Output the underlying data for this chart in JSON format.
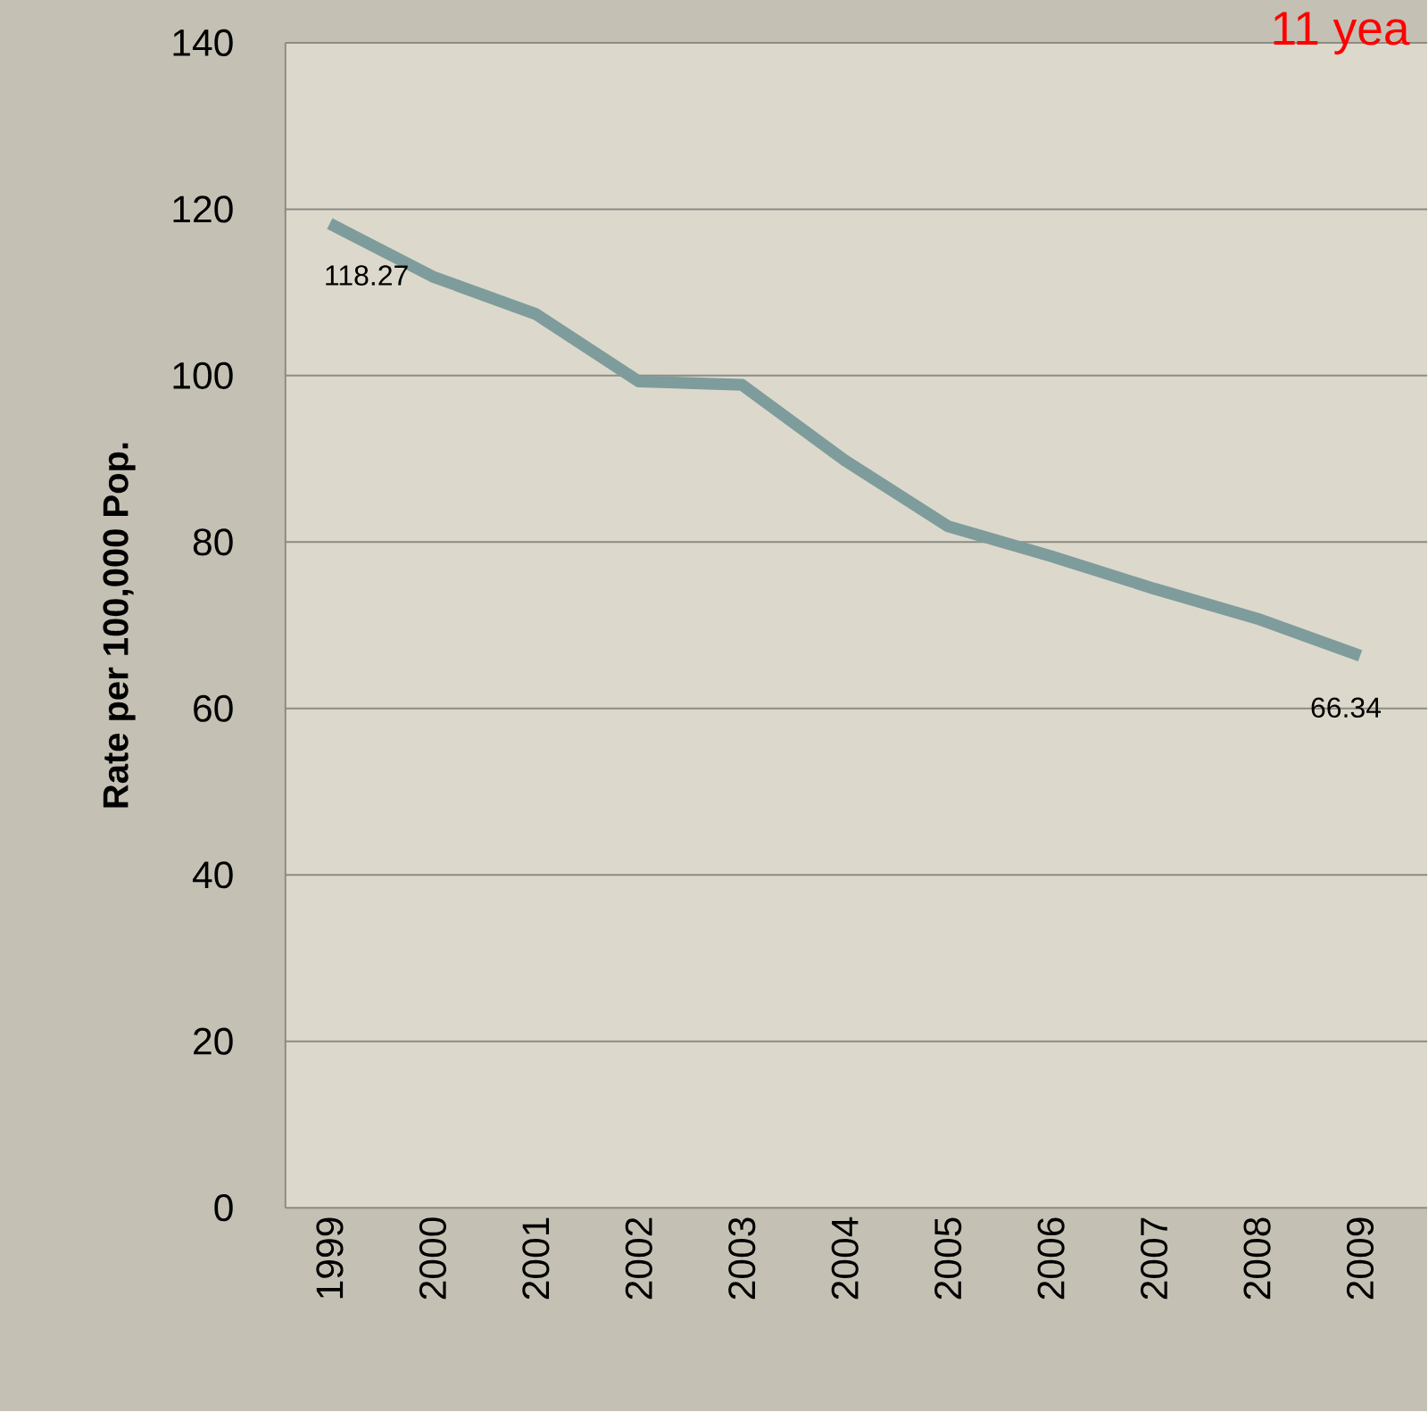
{
  "chart_data": {
    "type": "line",
    "title": "11 yea",
    "ylabel": "Rate per 100,000 Pop.",
    "categories": [
      "1999",
      "2000",
      "2001",
      "2002",
      "2003",
      "2004",
      "2005",
      "2006",
      "2007",
      "2008",
      "2009"
    ],
    "values": [
      118.27,
      111.9,
      107.4,
      99.3,
      98.9,
      89.8,
      81.9,
      78.3,
      74.4,
      70.8,
      66.34
    ],
    "value_labels": [
      "118.27",
      null,
      null,
      null,
      null,
      null,
      null,
      null,
      null,
      null,
      "66.34"
    ],
    "color": "#7f9c9c",
    "ylim": [
      0,
      140
    ],
    "yticks": [
      0,
      20,
      40,
      60,
      80,
      100,
      120,
      140
    ],
    "grid": "y",
    "marker": "none",
    "line_style": "solid"
  }
}
